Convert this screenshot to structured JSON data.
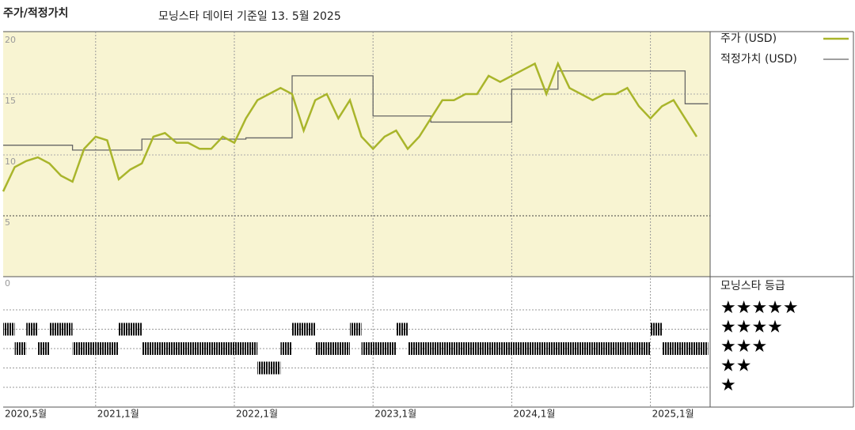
{
  "chart_data": {
    "type": "line",
    "title": "주가/적정가치",
    "subtitle": "모닝스타 데이터 기준일 13. 5월 2025",
    "x": [
      "2020-05",
      "2020-06",
      "2020-07",
      "2020-08",
      "2020-09",
      "2020-10",
      "2020-11",
      "2020-12",
      "2021-01",
      "2021-02",
      "2021-03",
      "2021-04",
      "2021-05",
      "2021-06",
      "2021-07",
      "2021-08",
      "2021-09",
      "2021-10",
      "2021-11",
      "2021-12",
      "2022-01",
      "2022-02",
      "2022-03",
      "2022-04",
      "2022-05",
      "2022-06",
      "2022-07",
      "2022-08",
      "2022-09",
      "2022-10",
      "2022-11",
      "2022-12",
      "2023-01",
      "2023-02",
      "2023-03",
      "2023-04",
      "2023-05",
      "2023-06",
      "2023-07",
      "2023-08",
      "2023-09",
      "2023-10",
      "2023-11",
      "2023-12",
      "2024-01",
      "2024-02",
      "2024-03",
      "2024-04",
      "2024-05",
      "2024-06",
      "2024-07",
      "2024-08",
      "2024-09",
      "2024-10",
      "2024-11",
      "2024-12",
      "2025-01",
      "2025-02",
      "2025-03",
      "2025-04",
      "2025-05"
    ],
    "series": [
      {
        "name": "주가 (USD)",
        "color": "#a9b52b",
        "step": false,
        "values": [
          7,
          9,
          9.5,
          9.8,
          9.3,
          8.3,
          7.8,
          10.5,
          11.5,
          11.2,
          8,
          8.8,
          9.3,
          11.5,
          11.8,
          11,
          11,
          10.5,
          10.5,
          11.5,
          11,
          13,
          14.5,
          15,
          15.5,
          15,
          12,
          14.5,
          15,
          13,
          14.5,
          11.5,
          10.5,
          11.5,
          12,
          10.5,
          11.5,
          13,
          14.5,
          14.5,
          15,
          15,
          16.5,
          16,
          16.5,
          17,
          17.5,
          15,
          17.5,
          15.5,
          15,
          14.5,
          15,
          15,
          15.5,
          14,
          13,
          14,
          14.5,
          13,
          11.5
        ]
      },
      {
        "name": "적정가치 (USD)",
        "color": "#666666",
        "step": true,
        "values": [
          10.8,
          10.8,
          10.8,
          10.8,
          10.8,
          10.8,
          10.4,
          10.4,
          10.4,
          10.4,
          10.4,
          10.4,
          11.3,
          11.3,
          11.3,
          11.3,
          11.3,
          11.3,
          11.3,
          11.3,
          11.3,
          11.4,
          11.4,
          11.4,
          11.4,
          16.5,
          16.5,
          16.5,
          16.5,
          16.5,
          16.5,
          16.5,
          13.2,
          13.2,
          13.2,
          13.2,
          13.2,
          12.7,
          12.7,
          12.7,
          12.7,
          12.7,
          12.7,
          12.7,
          15.4,
          15.4,
          15.4,
          15.4,
          16.9,
          16.9,
          16.9,
          16.9,
          16.9,
          16.9,
          16.9,
          16.9,
          16.9,
          16.9,
          16.9,
          14.2,
          14.2
        ]
      }
    ],
    "ylim": [
      0,
      20
    ],
    "yticks": [
      0,
      5,
      10,
      15,
      20
    ],
    "xticks": [
      {
        "value": "2020-05",
        "label": "2020,5월"
      },
      {
        "value": "2021-01",
        "label": "2021,1월"
      },
      {
        "value": "2022-01",
        "label": "2022,1월"
      },
      {
        "value": "2023-01",
        "label": "2023,1월"
      },
      {
        "value": "2024-01",
        "label": "2024,1월"
      },
      {
        "value": "2025-01",
        "label": "2025,1월"
      }
    ],
    "grid": true,
    "ratings": {
      "name": "모닝스타 등급",
      "levels": [
        {
          "value": 5,
          "label": "★★★★★"
        },
        {
          "value": 4,
          "label": "★★★★"
        },
        {
          "value": 3,
          "label": "★★★"
        },
        {
          "value": 2,
          "label": "★★"
        },
        {
          "value": 1,
          "label": "★"
        }
      ],
      "values": [
        4,
        3,
        4,
        3,
        4,
        4,
        3,
        3,
        3,
        3,
        4,
        4,
        3,
        3,
        3,
        3,
        3,
        3,
        3,
        3,
        3,
        3,
        2,
        2,
        3,
        4,
        4,
        3,
        3,
        3,
        4,
        3,
        3,
        3,
        4,
        3,
        3,
        3,
        3,
        3,
        3,
        3,
        3,
        3,
        3,
        3,
        3,
        3,
        3,
        3,
        3,
        3,
        3,
        3,
        3,
        3,
        4,
        3,
        3,
        3,
        3
      ]
    }
  }
}
